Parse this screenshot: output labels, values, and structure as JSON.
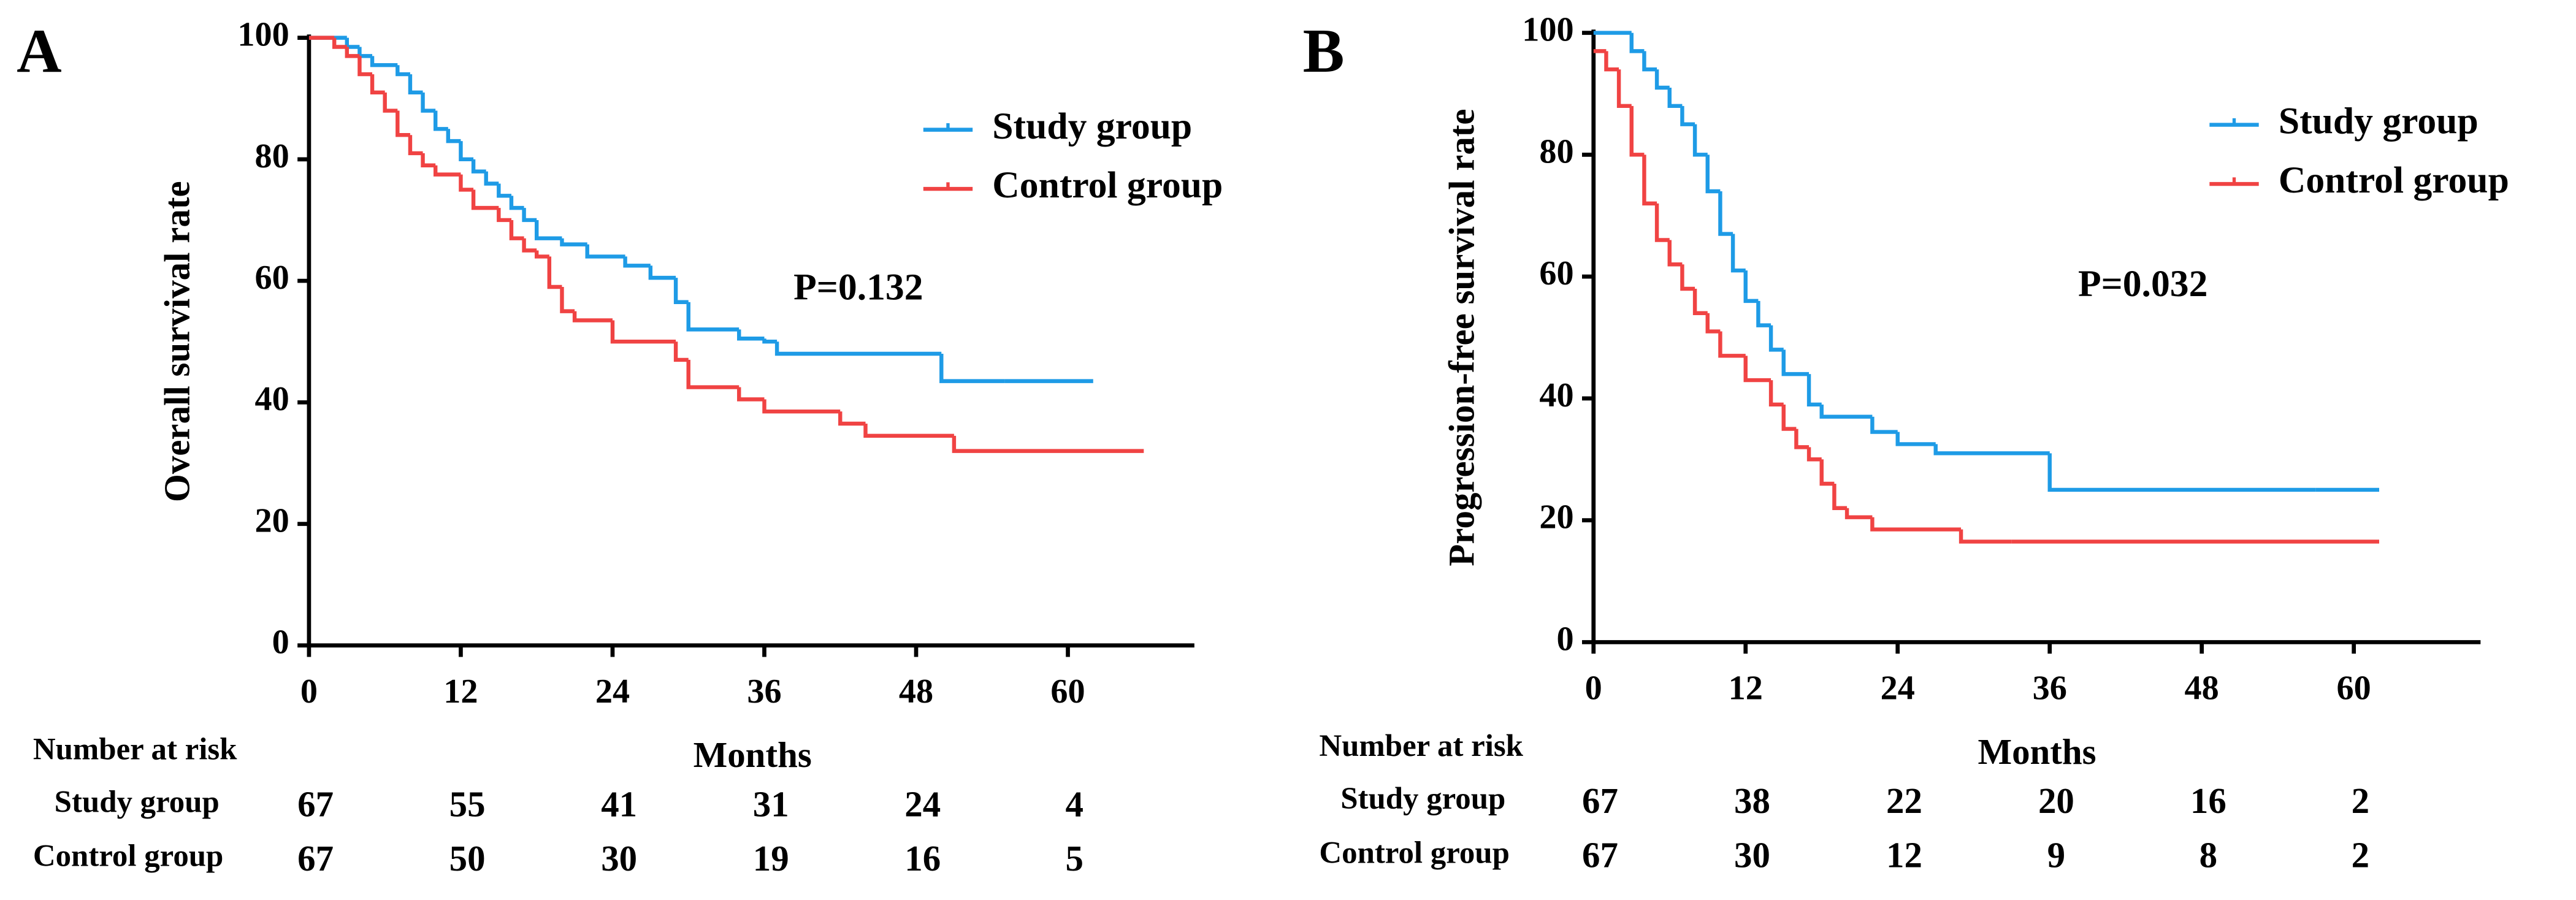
{
  "chart_data": [
    {
      "type": "step",
      "panel_label": "A",
      "y_label": "Overall survival rate",
      "x_label": "Months",
      "xlim": [
        0,
        70
      ],
      "ylim": [
        0,
        100
      ],
      "xticks": [
        0,
        12,
        24,
        36,
        48,
        60
      ],
      "yticks": [
        0,
        20,
        40,
        60,
        80,
        100
      ],
      "legend": "upper right",
      "annotation": "P=0.132",
      "series": [
        {
          "name": "Study group",
          "color": "#1e9be6",
          "x": [
            0,
            3,
            4,
            5,
            7,
            8,
            9,
            10,
            11,
            12,
            13,
            14,
            15,
            16,
            17,
            18,
            20,
            22,
            25,
            27,
            29,
            30,
            34,
            36,
            37,
            50,
            55,
            62
          ],
          "values": [
            100,
            98.5,
            97,
            95.5,
            94,
            91,
            88,
            85,
            83,
            80,
            78,
            76,
            74,
            72,
            70,
            67,
            66,
            64,
            62.5,
            60.5,
            56.5,
            52,
            50.5,
            50,
            48,
            43.5,
            43.5,
            43.5
          ]
        },
        {
          "name": "Control group",
          "color": "#f04343",
          "x": [
            0,
            2,
            3,
            4,
            5,
            6,
            7,
            8,
            9,
            10,
            12,
            13,
            15,
            16,
            17,
            18,
            19,
            20,
            21,
            24,
            29,
            30,
            34,
            36,
            42,
            44,
            51,
            66
          ],
          "values": [
            100,
            98.5,
            97,
            94,
            91,
            88,
            84,
            81,
            79,
            77.5,
            75,
            72,
            70,
            67,
            65,
            64,
            59,
            55,
            53.5,
            50,
            47,
            42.5,
            40.5,
            38.5,
            36.5,
            34.5,
            32,
            32
          ]
        }
      ],
      "risk_table": {
        "title": "Number at risk",
        "rows": [
          {
            "name": "Study group",
            "values": [
              67,
              55,
              41,
              31,
              24,
              4
            ]
          },
          {
            "name": "Control group",
            "values": [
              67,
              50,
              30,
              19,
              16,
              5
            ]
          }
        ]
      }
    },
    {
      "type": "step",
      "panel_label": "B",
      "y_label": "Progression-free survival rate",
      "x_label": "Months",
      "xlim": [
        0,
        70
      ],
      "ylim": [
        0,
        100
      ],
      "xticks": [
        0,
        12,
        24,
        36,
        48,
        60
      ],
      "yticks": [
        0,
        20,
        40,
        60,
        80,
        100
      ],
      "legend": "upper right",
      "annotation": "P=0.032",
      "series": [
        {
          "name": "Study group",
          "color": "#1e9be6",
          "x": [
            0,
            3,
            4,
            5,
            6,
            7,
            8,
            9,
            10,
            11,
            12,
            13,
            14,
            15,
            17,
            18,
            22,
            24,
            27,
            36,
            57,
            62
          ],
          "values": [
            100,
            97,
            94,
            91,
            88,
            85,
            80,
            74,
            67,
            61,
            56,
            52,
            48,
            44,
            39,
            37,
            34.5,
            32.5,
            31,
            25,
            25,
            25
          ]
        },
        {
          "name": "Control group",
          "color": "#f04343",
          "x": [
            0,
            1,
            2,
            3,
            4,
            5,
            6,
            7,
            8,
            9,
            10,
            12,
            14,
            15,
            16,
            17,
            18,
            19,
            20,
            22,
            29,
            33,
            62
          ],
          "values": [
            97,
            94,
            88,
            80,
            72,
            66,
            62,
            58,
            54,
            51,
            47,
            43,
            39,
            35,
            32,
            30,
            26,
            22,
            20.5,
            18.5,
            16.5,
            16.5,
            16.5
          ]
        }
      ],
      "risk_table": {
        "title": "Number at risk",
        "rows": [
          {
            "name": "Study group",
            "values": [
              67,
              38,
              22,
              20,
              16,
              2
            ]
          },
          {
            "name": "Control group",
            "values": [
              67,
              30,
              12,
              9,
              8,
              2
            ]
          }
        ]
      }
    }
  ]
}
